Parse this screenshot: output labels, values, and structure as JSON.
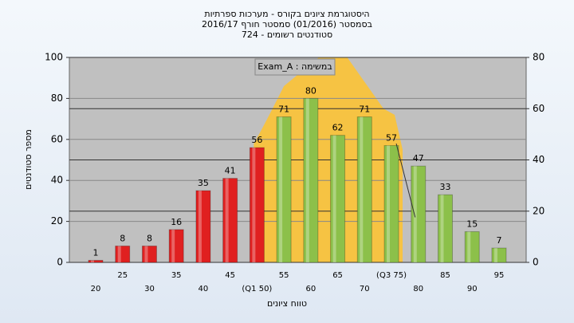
{
  "chart_data": {
    "type": "bar",
    "title": [
      "היסטוגרמת ציונים בקורס - מערכות ספרתיות",
      "בסמסטר  (01/2016)  סמסטר חורף 2016/17",
      "סטודנטים רשומים - 724"
    ],
    "annotation": "Exam_A : במשימה",
    "y_label": "מספר סטודנטים",
    "x_label": "טווח ציונים",
    "categories": [
      "20",
      "25",
      "30",
      "35",
      "40",
      "45",
      "(Q1 50)",
      "55",
      "60",
      "65",
      "70",
      "(Q3 75)",
      "80",
      "85",
      "90",
      "95"
    ],
    "values": [
      1,
      8,
      8,
      16,
      35,
      41,
      56,
      71,
      80,
      62,
      71,
      57,
      47,
      33,
      15,
      7
    ],
    "colors": [
      "#e02020",
      "#e02020",
      "#e02020",
      "#e02020",
      "#e02020",
      "#e02020",
      "#e02020",
      "#8cc04a",
      "#8cc04a",
      "#8cc04a",
      "#8cc04a",
      "#8cc04a",
      "#8cc04a",
      "#8cc04a",
      "#8cc04a",
      "#8cc04a"
    ],
    "ylim": [
      0,
      100
    ],
    "yticks": [
      0,
      20,
      40,
      60,
      80,
      100
    ],
    "y2lim": [
      0,
      80
    ],
    "y2ticks": [
      0,
      20,
      40,
      60,
      80
    ],
    "grid": true
  }
}
